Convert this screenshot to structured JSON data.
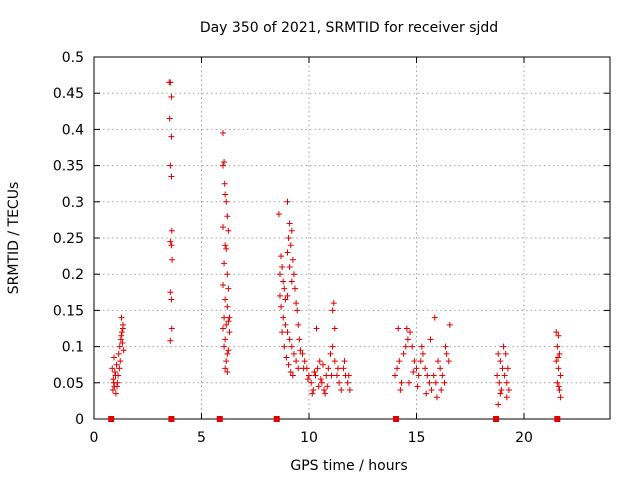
{
  "chart_data": {
    "type": "scatter",
    "title": "Day 350 of 2021, SRMTID for receiver sjdd",
    "xlabel": "GPS time / hours",
    "ylabel": "SRMTID / TECUs",
    "xlim": [
      0,
      24
    ],
    "ylim": [
      0,
      0.5
    ],
    "xticks": [
      0,
      5,
      10,
      15,
      20
    ],
    "xtick_labels": [
      "0",
      "5",
      "10",
      "15",
      "20"
    ],
    "yticks": [
      0,
      0.05,
      0.1,
      0.15,
      0.2,
      0.25,
      0.3,
      0.35,
      0.4,
      0.45,
      0.5
    ],
    "ytick_labels": [
      "0",
      "0.05",
      "0.1",
      "0.15",
      "0.2",
      "0.25",
      "0.3",
      "0.35",
      "0.4",
      "0.45",
      "0.5"
    ],
    "grid": true,
    "marker": "+",
    "color": "#e00000",
    "series": [
      {
        "name": "SRMTID",
        "points": [
          [
            0.85,
            0.07
          ],
          [
            0.9,
            0.055
          ],
          [
            0.95,
            0.045
          ],
          [
            1.0,
            0.06
          ],
          [
            1.05,
            0.075
          ],
          [
            0.88,
            0.04
          ],
          [
            0.93,
            0.085
          ],
          [
            1.1,
            0.05
          ],
          [
            0.97,
            0.065
          ],
          [
            1.02,
            0.035
          ],
          [
            1.15,
            0.09
          ],
          [
            1.2,
            0.1
          ],
          [
            1.25,
            0.11
          ],
          [
            1.3,
            0.12
          ],
          [
            1.35,
            0.13
          ],
          [
            1.28,
            0.14
          ],
          [
            1.22,
            0.08
          ],
          [
            1.32,
            0.105
          ],
          [
            1.18,
            0.07
          ],
          [
            1.38,
            0.095
          ],
          [
            1.12,
            0.06
          ],
          [
            1.27,
            0.115
          ],
          [
            0.92,
            0.05
          ],
          [
            1.07,
            0.045
          ],
          [
            1.34,
            0.125
          ],
          [
            3.5,
            0.465
          ],
          [
            3.55,
            0.465
          ],
          [
            3.6,
            0.445
          ],
          [
            3.52,
            0.415
          ],
          [
            3.6,
            0.39
          ],
          [
            3.55,
            0.35
          ],
          [
            3.6,
            0.335
          ],
          [
            3.62,
            0.26
          ],
          [
            3.55,
            0.245
          ],
          [
            3.6,
            0.24
          ],
          [
            3.63,
            0.22
          ],
          [
            3.55,
            0.175
          ],
          [
            3.6,
            0.165
          ],
          [
            3.62,
            0.125
          ],
          [
            3.55,
            0.108
          ],
          [
            6.0,
            0.395
          ],
          [
            6.05,
            0.355
          ],
          [
            6.0,
            0.35
          ],
          [
            6.08,
            0.325
          ],
          [
            6.1,
            0.31
          ],
          [
            6.15,
            0.3
          ],
          [
            6.2,
            0.28
          ],
          [
            6.0,
            0.265
          ],
          [
            6.25,
            0.26
          ],
          [
            6.1,
            0.24
          ],
          [
            6.15,
            0.235
          ],
          [
            6.05,
            0.215
          ],
          [
            6.2,
            0.2
          ],
          [
            6.25,
            0.18
          ],
          [
            6.0,
            0.185
          ],
          [
            6.1,
            0.165
          ],
          [
            6.2,
            0.155
          ],
          [
            6.05,
            0.14
          ],
          [
            6.15,
            0.13
          ],
          [
            6.25,
            0.135
          ],
          [
            6.3,
            0.12
          ],
          [
            6.1,
            0.11
          ],
          [
            6.05,
            0.1
          ],
          [
            6.2,
            0.09
          ],
          [
            6.15,
            0.08
          ],
          [
            6.1,
            0.07
          ],
          [
            6.2,
            0.065
          ],
          [
            6.3,
            0.14
          ],
          [
            6.0,
            0.125
          ],
          [
            6.25,
            0.095
          ],
          [
            8.6,
            0.283
          ],
          [
            8.7,
            0.225
          ],
          [
            8.65,
            0.2
          ],
          [
            8.75,
            0.21
          ],
          [
            8.8,
            0.19
          ],
          [
            8.85,
            0.18
          ],
          [
            8.9,
            0.165
          ],
          [
            9.0,
            0.3
          ],
          [
            9.1,
            0.27
          ],
          [
            9.2,
            0.26
          ],
          [
            9.05,
            0.25
          ],
          [
            9.15,
            0.24
          ],
          [
            9.0,
            0.23
          ],
          [
            9.25,
            0.22
          ],
          [
            9.1,
            0.21
          ],
          [
            9.3,
            0.2
          ],
          [
            9.2,
            0.19
          ],
          [
            9.35,
            0.18
          ],
          [
            9.0,
            0.17
          ],
          [
            9.4,
            0.16
          ],
          [
            8.7,
            0.155
          ],
          [
            8.8,
            0.14
          ],
          [
            8.9,
            0.13
          ],
          [
            9.0,
            0.12
          ],
          [
            9.1,
            0.11
          ],
          [
            9.2,
            0.1
          ],
          [
            9.3,
            0.09
          ],
          [
            9.4,
            0.08
          ],
          [
            9.5,
            0.07
          ],
          [
            8.75,
            0.12
          ],
          [
            8.85,
            0.1
          ],
          [
            8.95,
            0.085
          ],
          [
            9.05,
            0.075
          ],
          [
            9.15,
            0.065
          ],
          [
            9.25,
            0.06
          ],
          [
            9.45,
            0.15
          ],
          [
            9.5,
            0.13
          ],
          [
            9.55,
            0.11
          ],
          [
            9.6,
            0.095
          ],
          [
            8.65,
            0.17
          ],
          [
            9.7,
            0.09
          ],
          [
            9.8,
            0.08
          ],
          [
            9.9,
            0.07
          ],
          [
            10.0,
            0.06
          ],
          [
            10.1,
            0.05
          ],
          [
            10.2,
            0.04
          ],
          [
            10.3,
            0.06
          ],
          [
            10.4,
            0.07
          ],
          [
            10.5,
            0.08
          ],
          [
            10.6,
            0.05
          ],
          [
            10.7,
            0.04
          ],
          [
            10.8,
            0.06
          ],
          [
            10.9,
            0.07
          ],
          [
            11.0,
            0.09
          ],
          [
            11.1,
            0.1
          ],
          [
            11.2,
            0.08
          ],
          [
            11.3,
            0.06
          ],
          [
            11.4,
            0.05
          ],
          [
            11.5,
            0.04
          ],
          [
            11.6,
            0.07
          ],
          [
            11.7,
            0.06
          ],
          [
            11.8,
            0.05
          ],
          [
            11.9,
            0.04
          ],
          [
            10.15,
            0.035
          ],
          [
            10.45,
            0.045
          ],
          [
            10.75,
            0.035
          ],
          [
            11.05,
            0.06
          ],
          [
            11.15,
            0.16
          ],
          [
            11.1,
            0.15
          ],
          [
            11.2,
            0.125
          ],
          [
            10.35,
            0.125
          ],
          [
            9.75,
            0.07
          ],
          [
            9.95,
            0.055
          ],
          [
            10.25,
            0.065
          ],
          [
            10.55,
            0.055
          ],
          [
            10.85,
            0.045
          ],
          [
            11.35,
            0.07
          ],
          [
            11.65,
            0.08
          ],
          [
            11.85,
            0.06
          ],
          [
            10.65,
            0.075
          ],
          [
            14.0,
            0.06
          ],
          [
            14.1,
            0.07
          ],
          [
            14.2,
            0.08
          ],
          [
            14.3,
            0.05
          ],
          [
            14.4,
            0.09
          ],
          [
            14.5,
            0.1
          ],
          [
            14.6,
            0.11
          ],
          [
            14.7,
            0.12
          ],
          [
            14.8,
            0.1
          ],
          [
            14.9,
            0.08
          ],
          [
            15.0,
            0.07
          ],
          [
            15.1,
            0.06
          ],
          [
            15.2,
            0.08
          ],
          [
            15.3,
            0.09
          ],
          [
            15.4,
            0.07
          ],
          [
            15.5,
            0.06
          ],
          [
            15.6,
            0.05
          ],
          [
            15.7,
            0.04
          ],
          [
            15.8,
            0.06
          ],
          [
            15.9,
            0.05
          ],
          [
            16.0,
            0.08
          ],
          [
            16.1,
            0.07
          ],
          [
            16.2,
            0.06
          ],
          [
            16.3,
            0.05
          ],
          [
            16.4,
            0.09
          ],
          [
            16.5,
            0.08
          ],
          [
            16.55,
            0.13
          ],
          [
            15.85,
            0.14
          ],
          [
            14.15,
            0.125
          ],
          [
            14.55,
            0.125
          ],
          [
            14.25,
            0.04
          ],
          [
            14.65,
            0.05
          ],
          [
            15.05,
            0.045
          ],
          [
            15.45,
            0.035
          ],
          [
            15.95,
            0.03
          ],
          [
            16.15,
            0.04
          ],
          [
            14.85,
            0.065
          ],
          [
            15.25,
            0.1
          ],
          [
            15.65,
            0.11
          ],
          [
            16.35,
            0.1
          ],
          [
            18.8,
            0.09
          ],
          [
            18.9,
            0.08
          ],
          [
            19.0,
            0.07
          ],
          [
            19.1,
            0.06
          ],
          [
            19.2,
            0.05
          ],
          [
            19.3,
            0.04
          ],
          [
            18.85,
            0.05
          ],
          [
            18.95,
            0.04
          ],
          [
            19.05,
            0.1
          ],
          [
            19.15,
            0.09
          ],
          [
            19.25,
            0.07
          ],
          [
            18.75,
            0.06
          ],
          [
            18.9,
            0.035
          ],
          [
            18.8,
            0.02
          ],
          [
            19.2,
            0.03
          ],
          [
            21.5,
            0.12
          ],
          [
            21.6,
            0.115
          ],
          [
            21.55,
            0.1
          ],
          [
            21.65,
            0.09
          ],
          [
            21.5,
            0.08
          ],
          [
            21.6,
            0.07
          ],
          [
            21.7,
            0.06
          ],
          [
            21.55,
            0.05
          ],
          [
            21.65,
            0.04
          ],
          [
            21.7,
            0.03
          ],
          [
            21.58,
            0.085
          ],
          [
            21.62,
            0.045
          ]
        ]
      }
    ],
    "baseline_marks": {
      "y": 0,
      "x": [
        0.8,
        3.6,
        5.85,
        8.5,
        14.05,
        18.7,
        21.55
      ]
    }
  }
}
